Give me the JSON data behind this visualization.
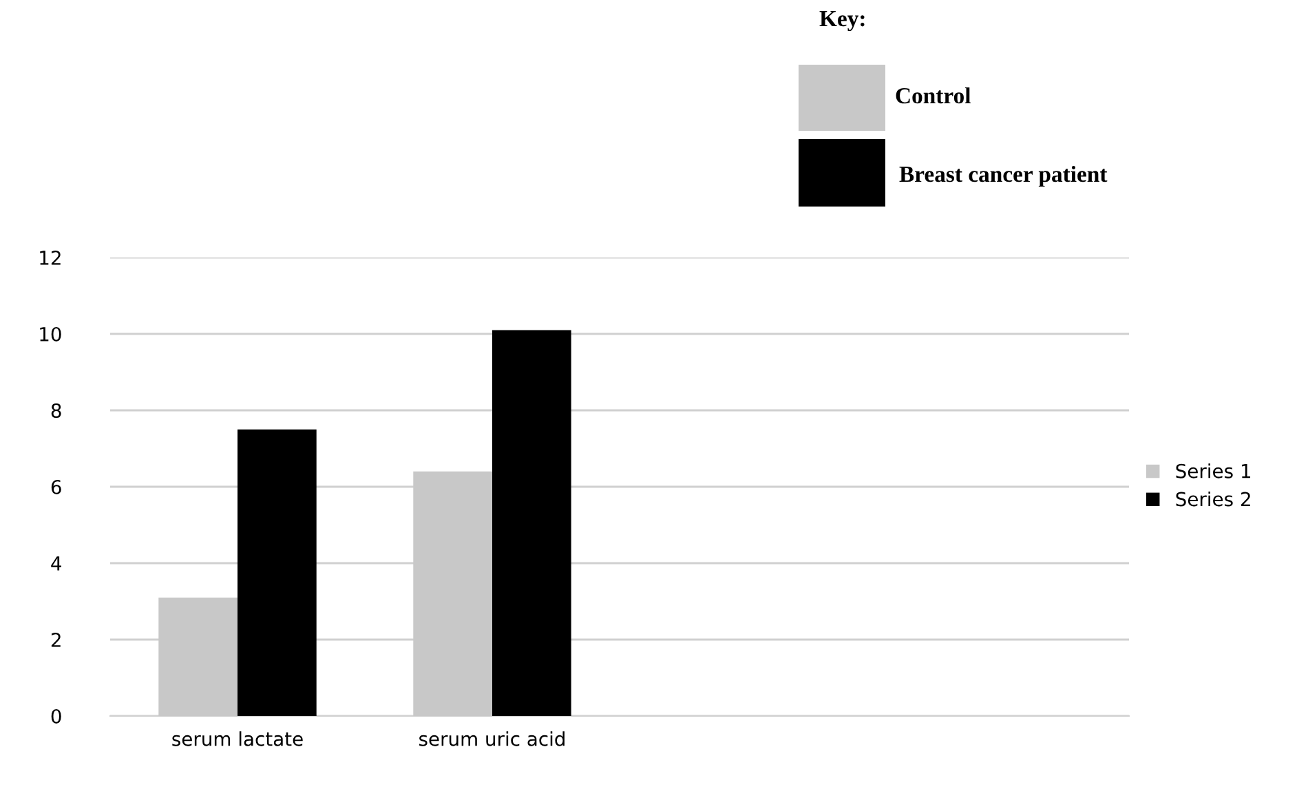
{
  "chart_data": {
    "type": "bar",
    "categories": [
      "serum lactate",
      "serum uric acid",
      null,
      null
    ],
    "series": [
      {
        "name": "Series 1",
        "color": "#c8c8c8",
        "values": [
          3.1,
          6.4,
          null,
          null
        ]
      },
      {
        "name": "Series 2",
        "color": "#000000",
        "values": [
          7.5,
          10.1,
          null,
          null
        ]
      }
    ],
    "ylim": [
      0,
      12
    ],
    "yticks": [
      0,
      2,
      4,
      6,
      8,
      10,
      12
    ],
    "grid": "y",
    "legend": "right",
    "annotations": [
      "Key:",
      "Control",
      "Breast cancer patient"
    ]
  }
}
